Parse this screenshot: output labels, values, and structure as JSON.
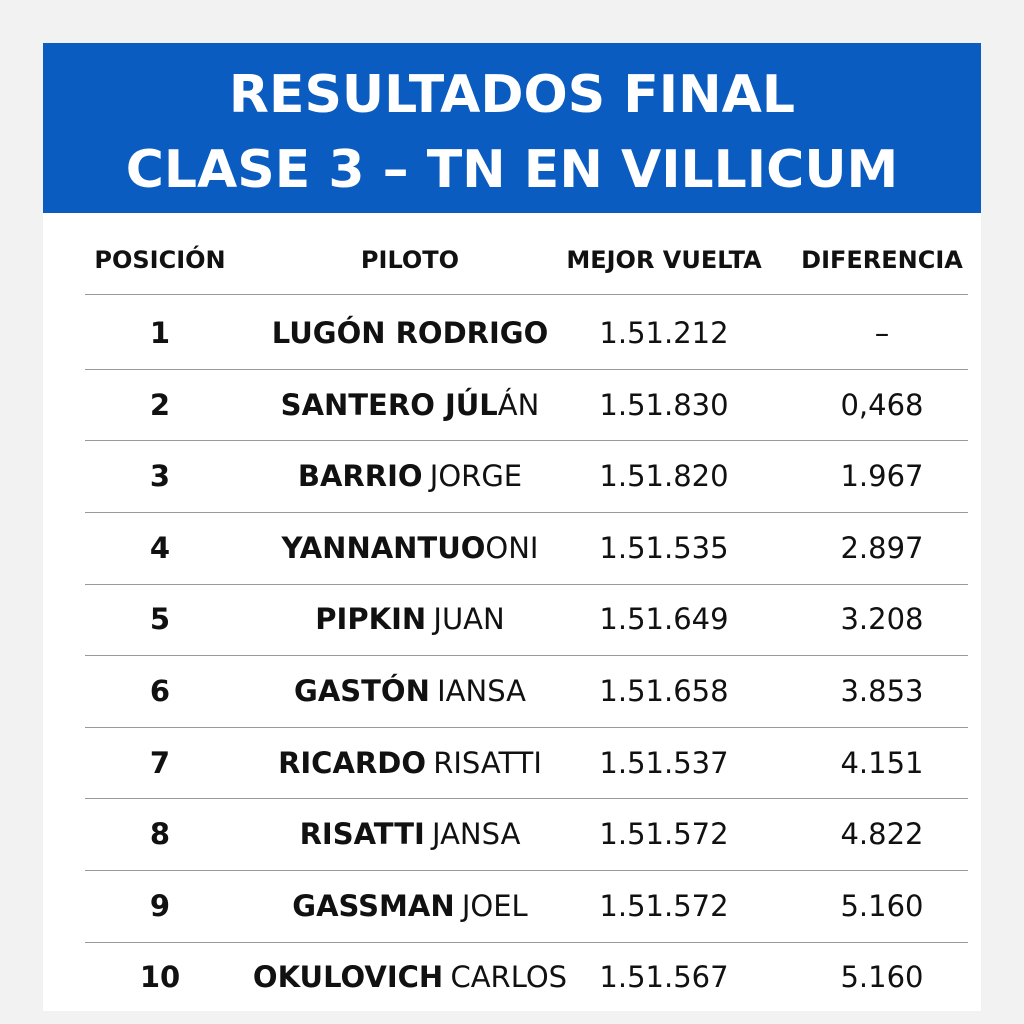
{
  "header": {
    "title": [
      "RESULTADOS FINAL",
      "CLASE 3 – TN EN VILLICUM"
    ]
  },
  "table": {
    "columns": [
      "POSICIÓN",
      "PILOTO",
      "MEJOR VUELTA",
      "DIFERENCIA"
    ],
    "rows": [
      {
        "position": "1",
        "pilot": {
          "bold": "LUGÓN RODRIGO"
        },
        "best_lap": "1.51.212",
        "gap": "–"
      },
      {
        "position": "2",
        "pilot": {
          "bold": "SANTERO JÚL",
          "regular": "ÁN"
        },
        "best_lap": "1.51.830",
        "gap": "0,468"
      },
      {
        "position": "3",
        "pilot": {
          "bold": "BARRIO",
          "regular": "JORGE"
        },
        "best_lap": "1.51.820",
        "gap": "1.967"
      },
      {
        "position": "4",
        "pilot": {
          "bold": "YANNANTUO",
          "regular": "ONI"
        },
        "best_lap": "1.51.535",
        "gap": "2.897"
      },
      {
        "position": "5",
        "pilot": {
          "bold": "PIPKIN",
          "regular": "JUAN"
        },
        "best_lap": "1.51.649",
        "gap": "3.208"
      },
      {
        "position": "6",
        "pilot": {
          "bold": "GASTÓN",
          "regular": "IANSA"
        },
        "best_lap": "1.51.658",
        "gap": "3.853"
      },
      {
        "position": "7",
        "pilot": {
          "bold": "RICARDO",
          "regular": "RISATTI"
        },
        "best_lap": "1.51.537",
        "gap": "4.151"
      },
      {
        "position": "8",
        "pilot": {
          "bold": "RISATTI",
          "regular": "JANSA"
        },
        "best_lap": "1.51.572",
        "gap": "4.822"
      },
      {
        "position": "9",
        "pilot": {
          "bold": "GASSMAN",
          "regular": "JOEL"
        },
        "best_lap": "1.51.572",
        "gap": "5.160"
      },
      {
        "position": "10",
        "pilot": {
          "bold": "OKULOVICH",
          "regular": "CARLOS"
        },
        "best_lap": "1.51.567",
        "gap": "5.160"
      }
    ]
  }
}
